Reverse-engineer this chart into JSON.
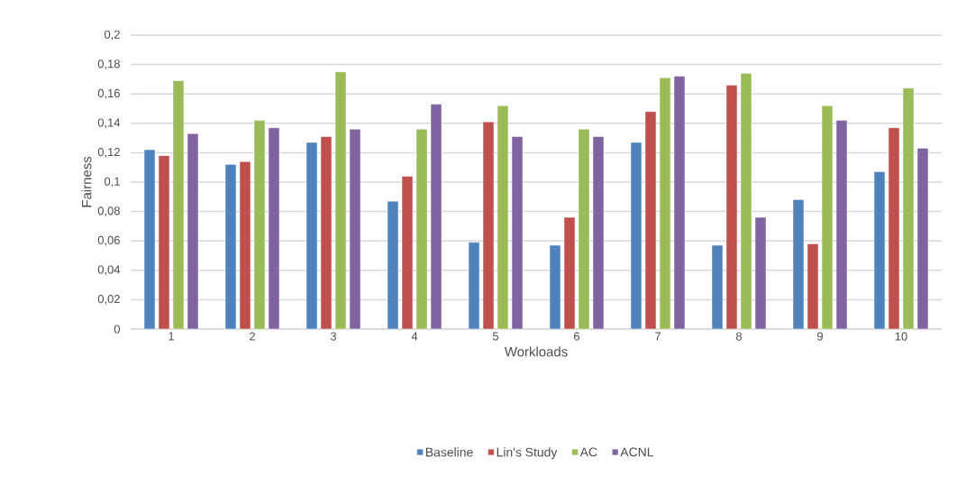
{
  "chart_data": {
    "type": "bar",
    "xlabel": "Workloads",
    "ylabel": "Fairness",
    "categories": [
      "1",
      "2",
      "3",
      "4",
      "5",
      "6",
      "7",
      "8",
      "9",
      "10"
    ],
    "series": [
      {
        "name": "Baseline",
        "color": "#4f81bd",
        "values": [
          0.122,
          0.112,
          0.127,
          0.087,
          0.059,
          0.057,
          0.127,
          0.057,
          0.088,
          0.107
        ]
      },
      {
        "name": "Lin's Study",
        "color": "#c0504d",
        "values": [
          0.118,
          0.114,
          0.131,
          0.104,
          0.141,
          0.076,
          0.148,
          0.166,
          0.058,
          0.137
        ]
      },
      {
        "name": "AC",
        "color": "#9bbb59",
        "values": [
          0.169,
          0.142,
          0.175,
          0.136,
          0.152,
          0.136,
          0.171,
          0.174,
          0.152,
          0.164
        ]
      },
      {
        "name": "ACNL",
        "color": "#8064a2",
        "values": [
          0.133,
          0.137,
          0.136,
          0.153,
          0.131,
          0.131,
          0.172,
          0.076,
          0.142,
          0.123
        ]
      }
    ],
    "ylim": [
      0,
      0.2
    ],
    "yticks": [
      {
        "value": 0,
        "label": "0"
      },
      {
        "value": 0.02,
        "label": "0,02"
      },
      {
        "value": 0.04,
        "label": "0,04"
      },
      {
        "value": 0.06,
        "label": "0,06"
      },
      {
        "value": 0.08,
        "label": "0,08"
      },
      {
        "value": 0.1,
        "label": "0,1"
      },
      {
        "value": 0.12,
        "label": "0,12"
      },
      {
        "value": 0.14,
        "label": "0,14"
      },
      {
        "value": 0.16,
        "label": "0,16"
      },
      {
        "value": 0.18,
        "label": "0,18"
      },
      {
        "value": 0.2,
        "label": "0,2"
      }
    ],
    "grid": "y",
    "legend": "bottom"
  }
}
